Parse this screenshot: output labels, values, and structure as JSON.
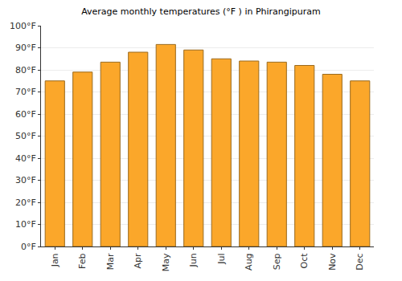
{
  "chart_data": {
    "type": "bar",
    "title": "Average monthly temperatures (°F ) in Phirangipuram",
    "categories": [
      "Jan",
      "Feb",
      "Mar",
      "Apr",
      "May",
      "Jun",
      "Jul",
      "Aug",
      "Sep",
      "Oct",
      "Nov",
      "Dec"
    ],
    "values": [
      75,
      79,
      83.5,
      88,
      91.5,
      89,
      85,
      84,
      83.5,
      82,
      78,
      75
    ],
    "color": "#fba72a",
    "ylim": [
      0,
      100
    ],
    "yticks": [
      {
        "value": 0,
        "label": "0°F"
      },
      {
        "value": 10,
        "label": "10°F"
      },
      {
        "value": 20,
        "label": "20°F"
      },
      {
        "value": 30,
        "label": "30°F"
      },
      {
        "value": 40,
        "label": "40°F"
      },
      {
        "value": 50,
        "label": "50°F"
      },
      {
        "value": 60,
        "label": "60°F"
      },
      {
        "value": 70,
        "label": "70°F"
      },
      {
        "value": 80,
        "label": "80°F"
      },
      {
        "value": 90,
        "label": "90°F"
      },
      {
        "value": 100,
        "label": "100°F"
      }
    ],
    "grid": true
  }
}
